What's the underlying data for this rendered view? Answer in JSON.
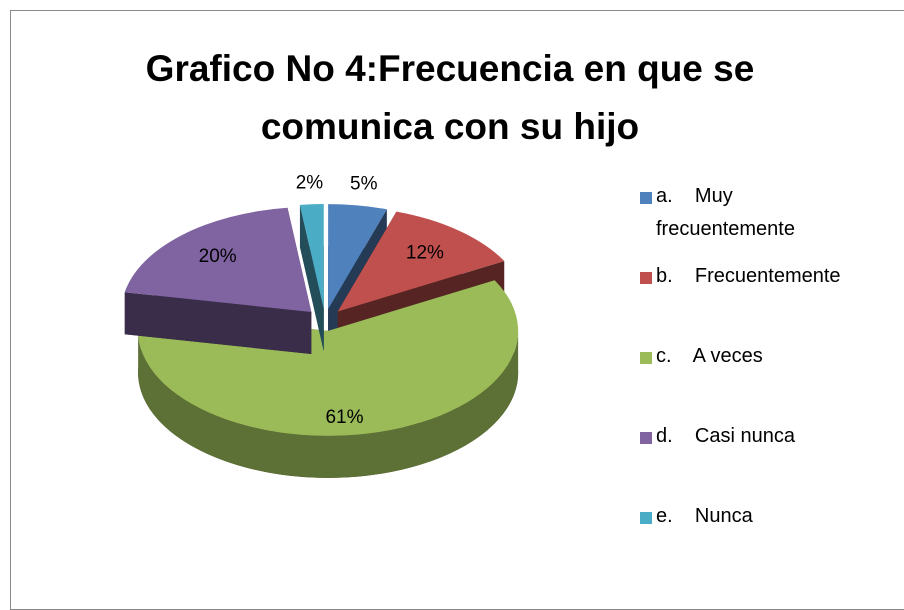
{
  "chart_data": {
    "type": "pie",
    "title": "Grafico No 4:Frecuencia en que se comunica con su hijo",
    "categories": [
      "a.    Muy frecuentemente",
      "b.    Frecuentemente",
      "c.    A veces",
      "d.    Casi nunca",
      "e.    Nunca"
    ],
    "values": [
      5,
      12,
      61,
      20,
      2
    ],
    "value_labels": [
      "5%",
      "12%",
      "61%",
      "20%",
      "2%"
    ],
    "colors": [
      "#4f81bd",
      "#c0504d",
      "#9bbb59",
      "#8064a2",
      "#4bacc6"
    ],
    "legend": "right"
  }
}
